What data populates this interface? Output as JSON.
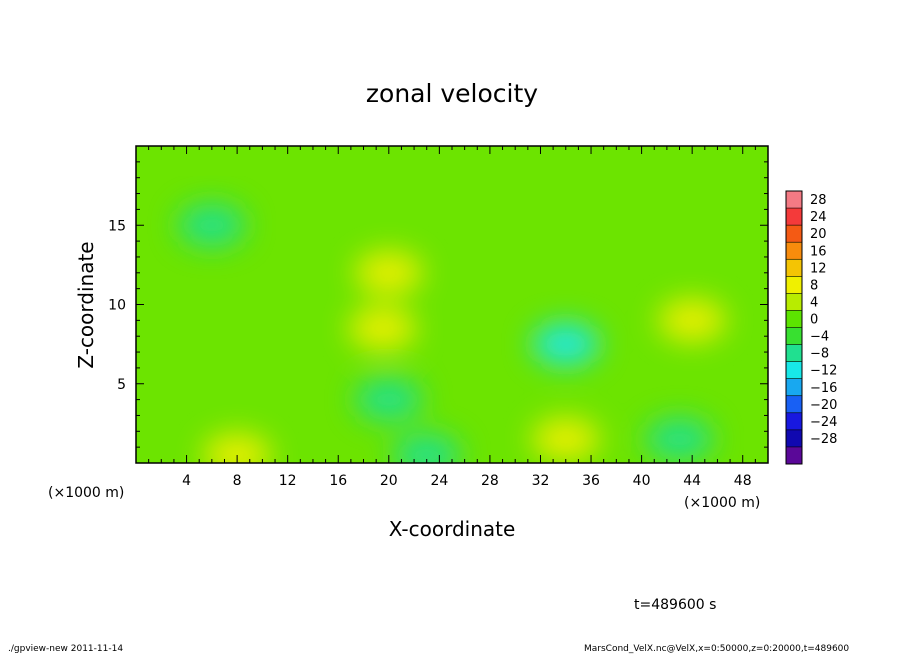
{
  "chart_data": {
    "type": "heatmap",
    "title": "zonal velocity",
    "xlabel": "X-coordinate",
    "ylabel": "Z-coordinate",
    "x_unit_left": "(×1000 m)",
    "x_unit_right": "(×1000 m)",
    "xlim": [
      0,
      50
    ],
    "ylim": [
      0,
      20
    ],
    "x_ticks": [
      4,
      8,
      12,
      16,
      20,
      24,
      28,
      32,
      36,
      40,
      44,
      48
    ],
    "y_ticks": [
      5,
      10,
      15
    ],
    "colorbar": {
      "levels": [
        28,
        24,
        20,
        16,
        12,
        8,
        4,
        0,
        -4,
        -8,
        -12,
        -16,
        -20,
        -24,
        -28
      ],
      "label_text": [
        "28",
        "24",
        "20",
        "16",
        "12",
        "8",
        "4",
        "0",
        "−4",
        "−8",
        "−12",
        "−16",
        "−20",
        "−24",
        "−28"
      ],
      "colors": [
        "#f47a84",
        "#f43a3a",
        "#f45a14",
        "#f88c0c",
        "#f4c404",
        "#f0f000",
        "#b8ec00",
        "#5ce400",
        "#38e030",
        "#20e090",
        "#18e8e8",
        "#18a8f0",
        "#1860f4",
        "#1818e0",
        "#1008b0",
        "#5a0898"
      ]
    },
    "field_features": [
      {
        "x": 8,
        "z": 0.5,
        "value": 10
      },
      {
        "x": 34,
        "z": 1.5,
        "value": 9
      },
      {
        "x": 20,
        "z": 12,
        "value": 9
      },
      {
        "x": 19.5,
        "z": 8.5,
        "value": 9
      },
      {
        "x": 44,
        "z": 9,
        "value": 8
      },
      {
        "x": 34,
        "z": 7.5,
        "value": -10
      },
      {
        "x": 23,
        "z": 0.5,
        "value": -8
      },
      {
        "x": 43,
        "z": 1.5,
        "value": -8
      },
      {
        "x": 6,
        "z": 15,
        "value": -5
      },
      {
        "x": 20,
        "z": 4,
        "value": -6
      }
    ],
    "time_label": "t=489600 s"
  },
  "footer": {
    "left": "./gpview-new  2011-11-14",
    "right": "MarsCond_VelX.nc@VelX,x=0:50000,z=0:20000,t=489600"
  }
}
